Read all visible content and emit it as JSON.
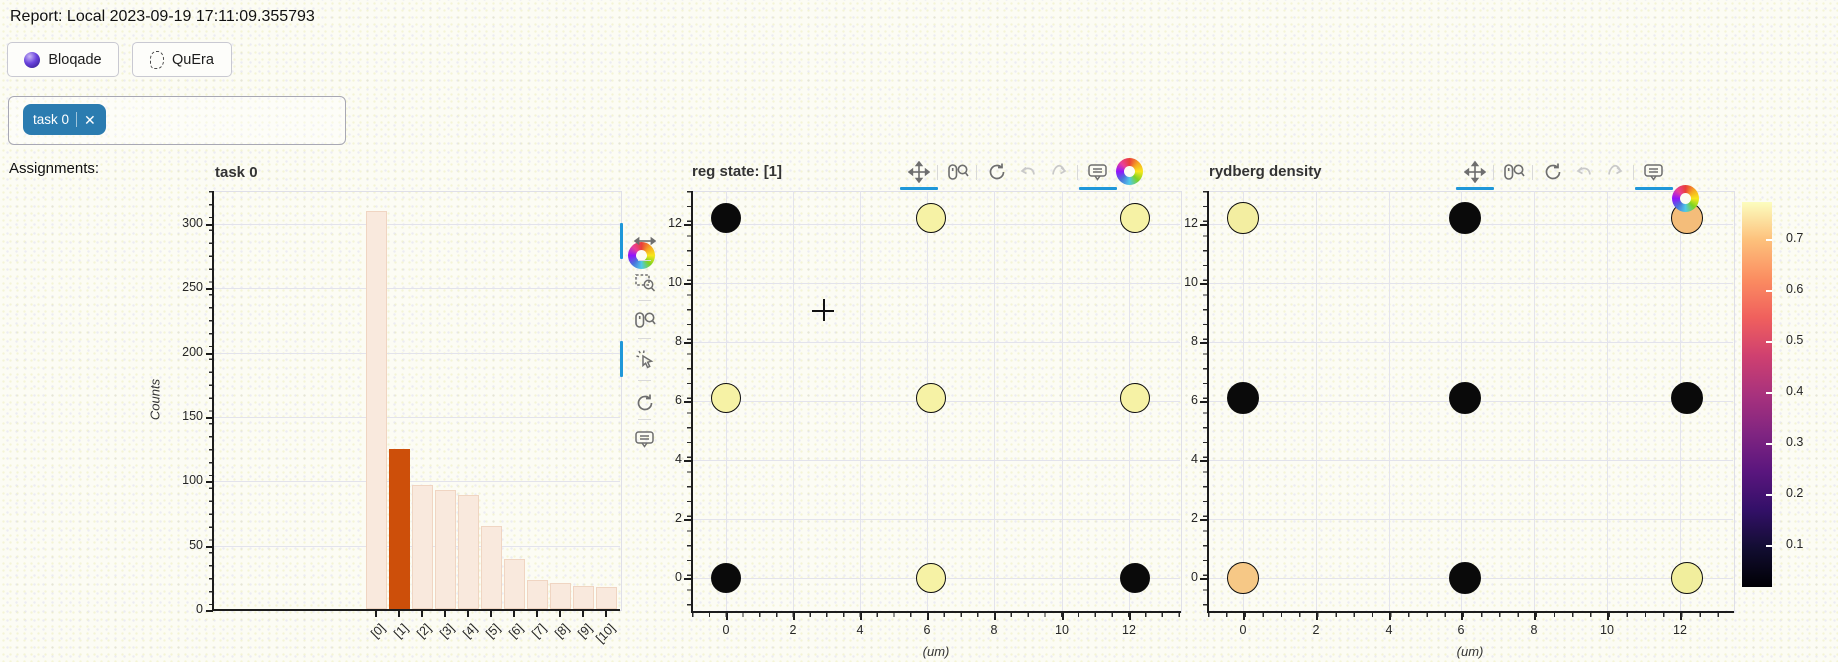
{
  "header": {
    "report_label": "Report: Local 2023-09-19 17:11:09.355793"
  },
  "tabs": [
    {
      "label": "Bloqade",
      "icon": "bloqade-sphere-icon"
    },
    {
      "label": "QuEra",
      "icon": "quera-logo-icon"
    }
  ],
  "task_select": {
    "chips": [
      {
        "label": "task 0",
        "close_icon": "close-icon"
      }
    ]
  },
  "assignments_label": "Assignments:",
  "toolbars": {
    "histogram_vertical": {
      "icons": [
        "bokeh-logo",
        "pan-x",
        "box-zoom",
        "wheel-zoom",
        "tap",
        "reset",
        "hover"
      ],
      "active": [
        "pan-x",
        "tap"
      ]
    },
    "scatter_horizontal": {
      "icons": [
        "pan",
        "wheel-zoom",
        "reset",
        "undo",
        "redo",
        "hover",
        "bokeh-logo"
      ],
      "active": [
        "pan",
        "hover"
      ],
      "disabled": [
        "undo",
        "redo"
      ]
    },
    "active_color": "#1e97d9"
  },
  "colors": {
    "bar_light": "#f9e9dd",
    "bar_highlight": "#cd4f0a",
    "chip_blue": "#2b7cb0",
    "state_fill": [
      "#f6f2a5",
      "#0a0a0a"
    ],
    "black_site": "#0a0a0a"
  },
  "chart_data": [
    {
      "type": "bar",
      "title": "task 0",
      "ylabel": "Counts",
      "categories": [
        "[0]",
        "[1]",
        "[2]",
        "[3]",
        "[4]",
        "[5]",
        "[6]",
        "[7]",
        "[8]",
        "[9]",
        "[10]"
      ],
      "values": [
        310,
        125,
        97,
        93,
        89,
        65,
        40,
        23,
        21,
        19,
        18
      ],
      "highlight_index": 1,
      "yticks": [
        0,
        50,
        100,
        150,
        200,
        250,
        300
      ],
      "ylim": [
        0,
        326
      ],
      "grid": "horizontal"
    },
    {
      "type": "scatter",
      "title": "reg state: [1]",
      "xlabel": "(um)",
      "xticks": [
        0,
        2,
        4,
        6,
        8,
        10,
        12
      ],
      "yticks": [
        0,
        2,
        4,
        6,
        8,
        10,
        12
      ],
      "xlim": [
        -1,
        13.2
      ],
      "ylim": [
        -1,
        13.2
      ],
      "grid": "both",
      "sites": [
        {
          "x": 0,
          "y": 12.2,
          "state": 1
        },
        {
          "x": 6.1,
          "y": 12.2,
          "state": 0
        },
        {
          "x": 12.2,
          "y": 12.2,
          "state": 0
        },
        {
          "x": 0,
          "y": 6.1,
          "state": 0
        },
        {
          "x": 6.1,
          "y": 6.1,
          "state": 0
        },
        {
          "x": 12.2,
          "y": 6.1,
          "state": 0
        },
        {
          "x": 0,
          "y": 0,
          "state": 1
        },
        {
          "x": 6.1,
          "y": 0,
          "state": 0
        },
        {
          "x": 12.2,
          "y": 0,
          "state": 1
        }
      ],
      "crosshair_cursor": {
        "x": 2.9,
        "y": 9.1
      }
    },
    {
      "type": "scatter",
      "title": "rydberg density",
      "xlabel": "(um)",
      "xticks": [
        0,
        2,
        4,
        6,
        8,
        10,
        12
      ],
      "yticks": [
        0,
        2,
        4,
        6,
        8,
        10,
        12
      ],
      "xlim": [
        -1,
        13.2
      ],
      "ylim": [
        -1,
        13.2
      ],
      "grid": "both",
      "sites": [
        {
          "x": 0,
          "y": 12.2,
          "density": 0.75,
          "color": "#f3eea1"
        },
        {
          "x": 6.1,
          "y": 12.2,
          "density": 0.01,
          "color": "#0a0a0a"
        },
        {
          "x": 12.2,
          "y": 12.2,
          "density": 0.62,
          "color": "#f4bd7a"
        },
        {
          "x": 0,
          "y": 6.1,
          "density": 0.01,
          "color": "#0a0a0a"
        },
        {
          "x": 6.1,
          "y": 6.1,
          "density": 0.01,
          "color": "#0a0a0a"
        },
        {
          "x": 12.2,
          "y": 6.1,
          "density": 0.01,
          "color": "#0a0a0a"
        },
        {
          "x": 0,
          "y": 0,
          "density": 0.66,
          "color": "#f6c886"
        },
        {
          "x": 6.1,
          "y": 0,
          "density": 0.01,
          "color": "#0a0a0a"
        },
        {
          "x": 12.2,
          "y": 0,
          "density": 0.73,
          "color": "#f1ee9d"
        }
      ],
      "colorbar": {
        "cmap": "magma",
        "ticks": [
          0.1,
          0.2,
          0.3,
          0.4,
          0.5,
          0.6,
          0.7
        ],
        "range": [
          0.0,
          0.775
        ]
      }
    }
  ]
}
